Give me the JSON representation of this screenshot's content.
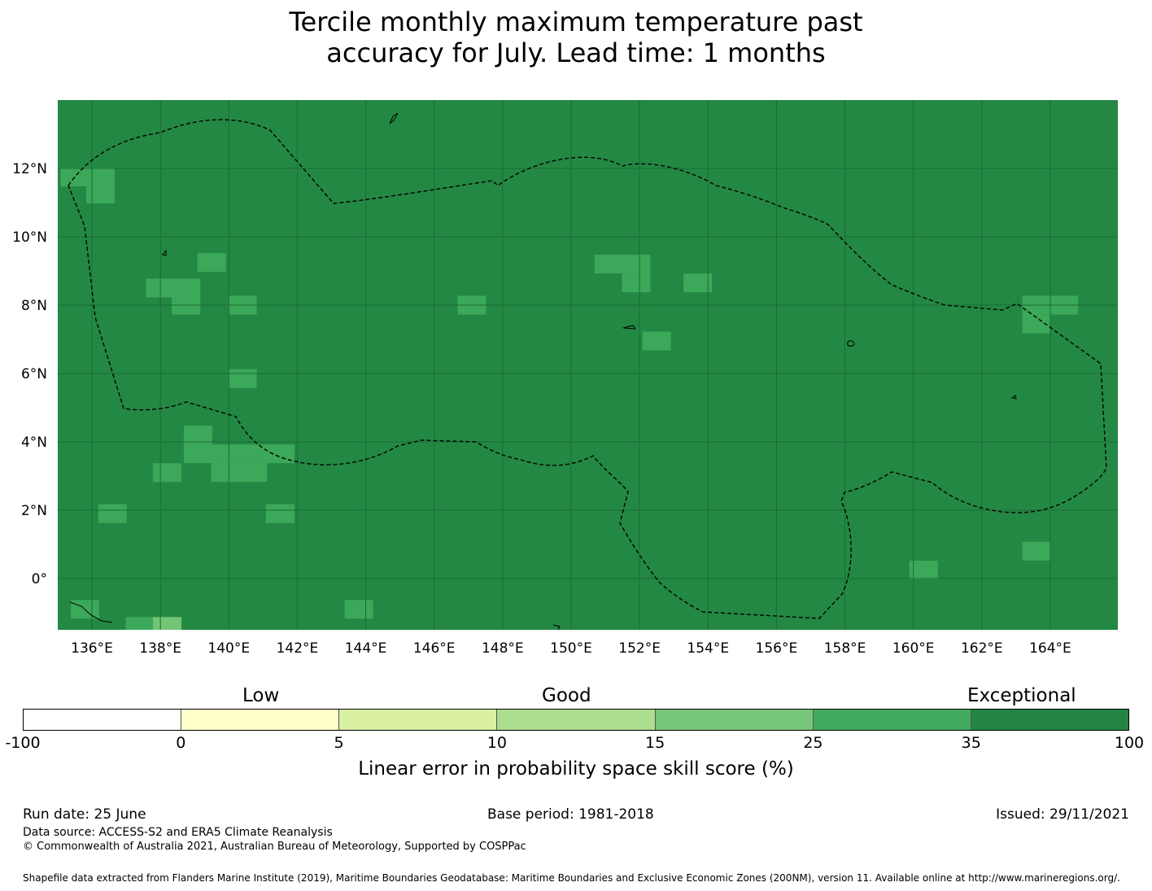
{
  "title_line1": "Tercile monthly maximum temperature past",
  "title_line2": "accuracy for July. Lead time: 1 months",
  "map": {
    "background_color": "#238843",
    "cell_color": "#3ca85a",
    "light_cell_color": "#74c476",
    "grid_color": "#1a6d33",
    "lon_labels": [
      "136°E",
      "138°E",
      "140°E",
      "142°E",
      "144°E",
      "146°E",
      "148°E",
      "150°E",
      "152°E",
      "154°E",
      "156°E",
      "158°E",
      "160°E",
      "162°E",
      "164°E"
    ],
    "lat_labels": [
      "12°N",
      "10°N",
      "8°N",
      "6°N",
      "4°N",
      "2°N",
      "0°"
    ],
    "highlight_cells": [
      {
        "lon": 135.5,
        "lat": 11.75
      },
      {
        "lon": 136.25,
        "lat": 11.75
      },
      {
        "lon": 136.25,
        "lat": 11.25
      },
      {
        "lon": 139.5,
        "lat": 9.25
      },
      {
        "lon": 138.0,
        "lat": 8.5
      },
      {
        "lon": 138.75,
        "lat": 8.5
      },
      {
        "lon": 138.75,
        "lat": 8.0
      },
      {
        "lon": 140.4,
        "lat": 8.0
      },
      {
        "lon": 140.4,
        "lat": 5.85
      },
      {
        "lon": 147.1,
        "lat": 8.0
      },
      {
        "lon": 151.1,
        "lat": 9.2
      },
      {
        "lon": 151.9,
        "lat": 9.2
      },
      {
        "lon": 151.9,
        "lat": 8.65
      },
      {
        "lon": 153.7,
        "lat": 8.65
      },
      {
        "lon": 152.5,
        "lat": 6.95
      },
      {
        "lon": 139.1,
        "lat": 4.2
      },
      {
        "lon": 139.1,
        "lat": 3.65
      },
      {
        "lon": 139.9,
        "lat": 3.65
      },
      {
        "lon": 140.7,
        "lat": 3.65
      },
      {
        "lon": 141.5,
        "lat": 3.65
      },
      {
        "lon": 139.9,
        "lat": 3.1
      },
      {
        "lon": 140.7,
        "lat": 3.1
      },
      {
        "lon": 138.2,
        "lat": 3.1
      },
      {
        "lon": 136.6,
        "lat": 1.9
      },
      {
        "lon": 141.5,
        "lat": 1.9
      },
      {
        "lon": 135.8,
        "lat": -0.9
      },
      {
        "lon": 143.8,
        "lat": -0.9
      },
      {
        "lon": 137.4,
        "lat": -1.4
      },
      {
        "lon": 163.6,
        "lat": 8.0
      },
      {
        "lon": 164.4,
        "lat": 8.0
      },
      {
        "lon": 163.6,
        "lat": 7.45
      },
      {
        "lon": 163.6,
        "lat": 0.8
      },
      {
        "lon": 160.3,
        "lat": 0.25
      }
    ],
    "light_cells": [
      {
        "lon": 138.2,
        "lat": -1.4
      }
    ]
  },
  "colorbar": {
    "categories": [
      "Low",
      "Good",
      "Exceptional"
    ],
    "ticks": [
      "-100",
      "0",
      "5",
      "10",
      "15",
      "25",
      "35",
      "100"
    ],
    "colors": [
      "#ffffff",
      "#ffffcc",
      "#d9f0a3",
      "#addd8e",
      "#78c679",
      "#41ab5d",
      "#238443"
    ],
    "label": "Linear error in probability space skill score (%)"
  },
  "footer": {
    "run_date": "Run date: 25 June",
    "base_period": "Base period: 1981-2018",
    "issued": "Issued: 29/11/2021",
    "data_source": "Data source: ACCESS-S2 and ERA5 Climate Reanalysis",
    "copyright": "© Commonwealth of Australia 2021, Australian Bureau of Meteorology, Supported by COSPPac",
    "shapefile": "Shapefile data extracted from Flanders Marine Institute (2019), Maritime Boundaries Geodatabase: Maritime Boundaries and Exclusive Economic Zones (200NM), version 11. Available online at http://www.marineregions.org/."
  }
}
